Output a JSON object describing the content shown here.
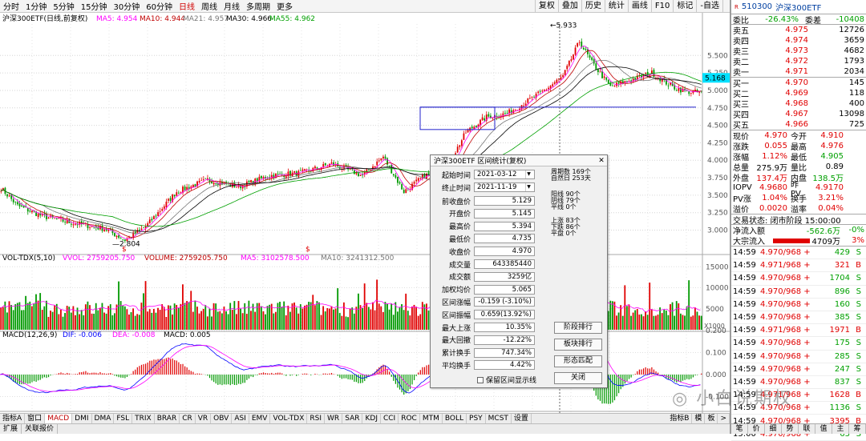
{
  "periods": [
    "分时",
    "1分钟",
    "5分钟",
    "15分钟",
    "30分钟",
    "60分钟",
    "日线",
    "周线",
    "月线",
    "多周期",
    "更多 "
  ],
  "active_period": "日线",
  "tools": [
    "复权",
    "叠加",
    "历史",
    "统计",
    "画线",
    "F10",
    "标记",
    "-自选",
    ""
  ],
  "main": {
    "title": "沪深300ETF(日线,前复权)",
    "ma": [
      {
        "k": "MA5:",
        "v": "4.954"
      },
      {
        "k": "MA10:",
        "v": "4.944"
      },
      {
        "k": "MA21:",
        "v": "4.957"
      },
      {
        "k": "MA30:",
        "v": "4.966"
      },
      {
        "k": "MA55:",
        "v": "4.962"
      }
    ],
    "yticks": [
      "5.500",
      "5.250",
      "5.000",
      "4.750",
      "4.500",
      "4.250",
      "4.000",
      "3.750",
      "3.500",
      "3.250",
      "3.000"
    ],
    "current": "5.168",
    "high_mark": "5.933",
    "low_mark": "2.804",
    "signal": "$"
  },
  "vol": {
    "title": "VOL-TDX(5,10)",
    "vvol": "VVOL: 2759205.750",
    "volume": "VOLUME: 2759205.750",
    "ma5": "MA5: 3102578.500",
    "ma10": "MA10: 3241312.500",
    "yticks": [
      "15000",
      "10000",
      "5000"
    ],
    "unit": "X1000"
  },
  "macd": {
    "title": "MACD(12,26,9)",
    "dif": "DIF: -0.006",
    "dea": "DEA: -0.008",
    "macd": "MACD: 0.005",
    "yticks": [
      "0.200",
      "0.100",
      "0.000",
      "-0.100"
    ]
  },
  "xaxis": {
    "labels": [
      "2018年",
      "8",
      "9",
      "10",
      "11",
      "12",
      "1",
      "2",
      "3",
      "4",
      "5",
      "6",
      "7",
      "8",
      "9",
      "10",
      "11",
      "12",
      "2020/02/21/五",
      "6",
      "7",
      "8",
      "9",
      "10",
      "11",
      "12",
      "1",
      "2",
      "3",
      "4",
      "5",
      "6",
      "7",
      "8",
      "9",
      "10",
      "11"
    ],
    "highlight": "2020/02/21/五",
    "right": "日线"
  },
  "ind_tabs": [
    "指标A",
    "窗口",
    "MACD",
    "DMI",
    "DMA",
    "FSL",
    "TRIX",
    "BRAR",
    "CR",
    "VR",
    "OBV",
    "ASI",
    "EMV",
    "VOL-TDX",
    "RSI",
    "WR",
    "SAR",
    "KDJ",
    "CCI",
    "ROC",
    "MTM",
    "BOLL",
    "PSY",
    "MCST",
    "设置"
  ],
  "ind_tabs_right": [
    "指标B",
    "模",
    "板",
    ">"
  ],
  "active_ind": "MACD",
  "bottom_tabs": [
    "扩展",
    "关联报价"
  ],
  "right": {
    "mark": "R",
    "code": "510300",
    "name": "沪深300ETF",
    "weibi": {
      "l": "委比",
      "v": "-26.43%",
      "l2": "委差",
      "v2": "-10408"
    },
    "asks": [
      [
        "卖五",
        "4.975",
        "12726"
      ],
      [
        "卖四",
        "4.974",
        "3659"
      ],
      [
        "卖三",
        "4.973",
        "4682"
      ],
      [
        "卖二",
        "4.972",
        "1793"
      ],
      [
        "卖一",
        "4.971",
        "2034"
      ]
    ],
    "bids": [
      [
        "买一",
        "4.970",
        "145"
      ],
      [
        "买二",
        "4.969",
        "118"
      ],
      [
        "买三",
        "4.968",
        "400"
      ],
      [
        "买四",
        "4.967",
        "13098"
      ],
      [
        "买五",
        "4.966",
        "725"
      ]
    ],
    "quote": [
      [
        "现价",
        "4.970",
        "今开",
        "4.910"
      ],
      [
        "涨跌",
        "0.055",
        "最高",
        "4.976"
      ],
      [
        "涨幅",
        "1.12%",
        "最低",
        "4.905"
      ],
      [
        "总量",
        "275.9万",
        "量比",
        "0.89"
      ],
      [
        "外盘",
        "137.4万",
        "内盘",
        "138.5万"
      ],
      [
        "IOPV",
        "4.9680",
        "昨PV",
        "4.9170"
      ],
      [
        "PV涨",
        "1.04%",
        "换手",
        "3.21%"
      ],
      [
        "溢价",
        "0.0020",
        "溢率",
        "0.04%"
      ]
    ],
    "status": "交易状态: 闭市阶段 15:00:00",
    "flow": [
      [
        "净流入额",
        "-562.6万",
        "-0%"
      ],
      [
        "大宗流入",
        "4709万",
        "3%"
      ]
    ],
    "ticks": [
      [
        "14:59",
        "4.970/968",
        "+",
        "429",
        "S"
      ],
      [
        "14:59",
        "4.971/968",
        "+",
        "321",
        "B"
      ],
      [
        "14:59",
        "4.970/968",
        "+",
        "1704",
        "S"
      ],
      [
        "14:59",
        "4.970/968",
        "+",
        "896",
        "S"
      ],
      [
        "14:59",
        "4.970/968",
        "+",
        "160",
        "S"
      ],
      [
        "14:59",
        "4.970/968",
        "+",
        "385",
        "S"
      ],
      [
        "14:59",
        "4.971/968",
        "+",
        "1971",
        "B"
      ],
      [
        "14:59",
        "4.970/968",
        "+",
        "175",
        "S"
      ],
      [
        "14:59",
        "4.970/968",
        "+",
        "285",
        "S"
      ],
      [
        "14:59",
        "4.970/968",
        "+",
        "247",
        "S"
      ],
      [
        "14:59",
        "4.970/968",
        "+",
        "837",
        "S"
      ],
      [
        "14:59",
        "4.971/968",
        "+",
        "1628",
        "B"
      ],
      [
        "14:59",
        "4.970/968",
        "+",
        "1136",
        "S"
      ],
      [
        "14:59",
        "4.970/968",
        "+",
        "3395",
        "B"
      ],
      [
        "15:00",
        "4.970/968",
        "+",
        "63",
        "S"
      ]
    ],
    "tabs": [
      "笔",
      "价",
      "细",
      "势",
      "联",
      "值",
      "主",
      "筹"
    ]
  },
  "dialog": {
    "title": "沪深300ETF 区间统计(复权)",
    "start": {
      "label": "起始时间",
      "value": "2021-03-12"
    },
    "end": {
      "label": "终止时间",
      "value": "2021-11-19"
    },
    "fields": [
      [
        "前收盘价",
        "5.129"
      ],
      [
        "开盘价",
        "5.145"
      ],
      [
        "最高价",
        "5.394"
      ],
      [
        "最低价",
        "4.735"
      ],
      [
        "收盘价",
        "4.970"
      ],
      [
        "成交量",
        "643385440"
      ],
      [
        "成交额",
        "3259亿"
      ],
      [
        "加权均价",
        "5.065"
      ],
      [
        "区间涨幅",
        "-0.159 (-3.10%)"
      ],
      [
        "区间振幅",
        "0.659(13.92%)"
      ],
      [
        "最大上涨",
        "10.35%"
      ],
      [
        "最大回撤",
        "-12.22%"
      ],
      [
        "累计换手",
        "747.34%"
      ],
      [
        "平均换手",
        "4.42%"
      ]
    ],
    "stats1": [
      [
        "周期数",
        "169个"
      ],
      [
        "自然日",
        "253天"
      ]
    ],
    "stats2": [
      [
        "阳线",
        "90个"
      ],
      [
        "阴线",
        "79个"
      ],
      [
        "平线",
        "0个"
      ]
    ],
    "stats3": [
      [
        "上涨",
        "83个"
      ],
      [
        "下跌",
        "86个"
      ],
      [
        "平盘",
        "0个"
      ]
    ],
    "buttons": [
      "阶段排行",
      "板块排行",
      "形态匹配",
      "关闭"
    ],
    "checkbox": "保留区间显示线"
  },
  "watermark": "小白说期权",
  "colors": {
    "up": "#e00000",
    "down": "#009900",
    "ma5": "#ff00ff",
    "ma10": "#c00000",
    "ma21": "#777777",
    "ma30": "#000000",
    "ma55": "#00a000",
    "dif": "#0000ff",
    "dea": "#ff00ff"
  }
}
